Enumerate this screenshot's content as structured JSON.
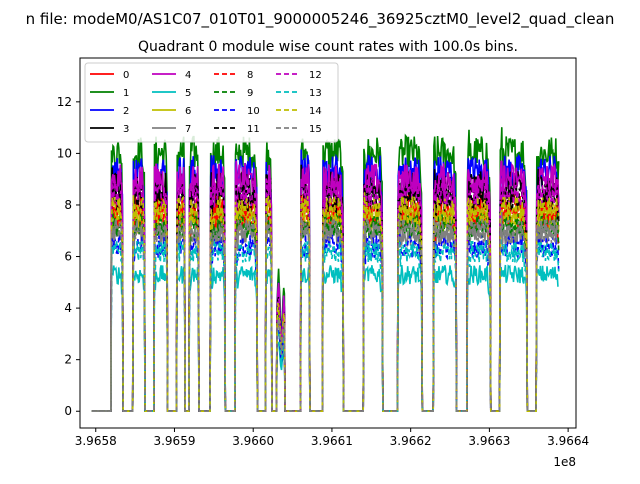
{
  "chart_data": {
    "type": "line",
    "suptitle": "n file: modeM0/AS1C07_010T01_9000005246_36925cztM0_level2_quad_clean",
    "title": "Quadrant 0 module wise count rates with 100.0s bins.",
    "xlabel": "",
    "ylabel": "",
    "x_offset_label": "1e8",
    "xlim": [
      3.96578,
      3.96641
    ],
    "ylim": [
      -0.65,
      13.7
    ],
    "x_ticks": [
      3.9658,
      3.9659,
      3.966,
      3.9661,
      3.9662,
      3.9663,
      3.9664
    ],
    "x_tick_labels": [
      "3.9658",
      "3.9659",
      "3.9660",
      "3.9661",
      "3.9662",
      "3.9663",
      "3.9664"
    ],
    "y_ticks": [
      0,
      2,
      4,
      6,
      8,
      10,
      12
    ],
    "y_tick_labels": [
      "0",
      "2",
      "4",
      "6",
      "8",
      "10",
      "12"
    ],
    "grid": false,
    "legend": {
      "position": "top-left",
      "columns": 4
    },
    "segments": [
      {
        "start": 3.96582,
        "end": 3.965834
      },
      {
        "start": 3.965847,
        "end": 3.965862
      },
      {
        "start": 3.965874,
        "end": 3.965891
      },
      {
        "start": 3.965903,
        "end": 3.965913
      },
      {
        "start": 3.965919,
        "end": 3.965931
      },
      {
        "start": 3.965946,
        "end": 3.965964
      },
      {
        "start": 3.965977,
        "end": 3.966005
      },
      {
        "start": 3.966016,
        "end": 3.966023
      },
      {
        "start": 3.96603,
        "end": 3.96604
      },
      {
        "start": 3.96606,
        "end": 3.966072
      },
      {
        "start": 3.966088,
        "end": 3.966114
      },
      {
        "start": 3.96614,
        "end": 3.966164
      },
      {
        "start": 3.966184,
        "end": 3.966214
      },
      {
        "start": 3.966229,
        "end": 3.966258
      },
      {
        "start": 3.966272,
        "end": 3.966301
      },
      {
        "start": 3.966313,
        "end": 3.966348
      },
      {
        "start": 3.96636,
        "end": 3.96639
      }
    ],
    "series": [
      {
        "name": "0",
        "color": "#ff0000",
        "dash": "solid",
        "level": 7.9
      },
      {
        "name": "1",
        "color": "#008000",
        "dash": "solid",
        "level": 10.0
      },
      {
        "name": "2",
        "color": "#0000ff",
        "dash": "solid",
        "level": 9.3
      },
      {
        "name": "3",
        "color": "#000000",
        "dash": "solid",
        "level": 8.7
      },
      {
        "name": "4",
        "color": "#bf00bf",
        "dash": "solid",
        "level": 9.0
      },
      {
        "name": "5",
        "color": "#00bfbf",
        "dash": "solid",
        "level": 5.3
      },
      {
        "name": "6",
        "color": "#bfbf00",
        "dash": "solid",
        "level": 7.4
      },
      {
        "name": "7",
        "color": "#808080",
        "dash": "solid",
        "level": 6.9
      },
      {
        "name": "8",
        "color": "#ff0000",
        "dash": "dashed",
        "level": 7.6
      },
      {
        "name": "9",
        "color": "#008000",
        "dash": "dashed",
        "level": 7.2
      },
      {
        "name": "10",
        "color": "#0000ff",
        "dash": "dashed",
        "level": 6.4
      },
      {
        "name": "11",
        "color": "#000000",
        "dash": "dashed",
        "level": 8.3
      },
      {
        "name": "12",
        "color": "#bf00bf",
        "dash": "dashed",
        "level": 8.5
      },
      {
        "name": "13",
        "color": "#00bfbf",
        "dash": "dashed",
        "level": 6.2
      },
      {
        "name": "14",
        "color": "#bfbf00",
        "dash": "dashed",
        "level": 7.8
      },
      {
        "name": "15",
        "color": "#808080",
        "dash": "dashed",
        "level": 7.0
      }
    ]
  }
}
